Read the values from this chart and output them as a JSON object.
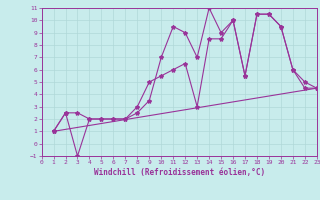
{
  "xlabel": "Windchill (Refroidissement éolien,°C)",
  "bg_color": "#c8ecec",
  "grid_color": "#b0d8d8",
  "line_color": "#993399",
  "xlim": [
    0,
    23
  ],
  "ylim": [
    -1,
    11
  ],
  "xticks": [
    0,
    1,
    2,
    3,
    4,
    5,
    6,
    7,
    8,
    9,
    10,
    11,
    12,
    13,
    14,
    15,
    16,
    17,
    18,
    19,
    20,
    21,
    22,
    23
  ],
  "yticks": [
    -1,
    0,
    1,
    2,
    3,
    4,
    5,
    6,
    7,
    8,
    9,
    10,
    11
  ],
  "line1_x": [
    1,
    2,
    3,
    4,
    5,
    6,
    7,
    8,
    9,
    10,
    11,
    12,
    13,
    14,
    15,
    16,
    17,
    18,
    19,
    20,
    21,
    22,
    23
  ],
  "line1_y": [
    1,
    2.5,
    2.5,
    2,
    2,
    2,
    2,
    2.5,
    3.5,
    7,
    9.5,
    9,
    7,
    11,
    9,
    10,
    5.5,
    10.5,
    10.5,
    9.5,
    6,
    5,
    4.5
  ],
  "line2_x": [
    1,
    2,
    3,
    4,
    5,
    6,
    7,
    8,
    9,
    10,
    11,
    12,
    13,
    14,
    15,
    16,
    17,
    18,
    19,
    20,
    21,
    22,
    23
  ],
  "line2_y": [
    1,
    2.5,
    -1,
    2,
    2,
    2,
    2,
    3,
    5,
    5.5,
    6,
    6.5,
    3,
    8.5,
    8.5,
    10,
    5.5,
    10.5,
    10.5,
    9.5,
    6,
    4.5,
    4.5
  ],
  "line3_x": [
    1,
    23
  ],
  "line3_y": [
    1,
    4.5
  ]
}
